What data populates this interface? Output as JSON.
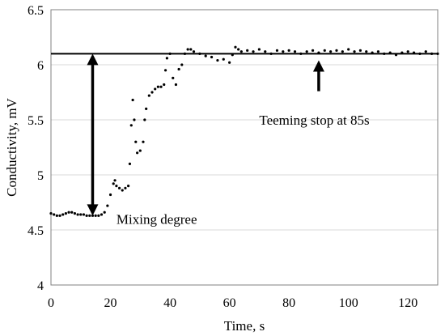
{
  "chart_data": {
    "type": "scatter",
    "title": "",
    "xlabel": "Time, s",
    "ylabel": "Conductivity, mV",
    "xlim": [
      0,
      130
    ],
    "ylim": [
      4,
      6.5
    ],
    "xticks": [
      "0",
      "20",
      "40",
      "60",
      "80",
      "100",
      "120"
    ],
    "yticks": [
      "4",
      "4.5",
      "5",
      "5.5",
      "6",
      "6.5"
    ],
    "grid": "horizontal",
    "legend": "none",
    "reference_line": {
      "y": 6.1
    },
    "annotations": [
      {
        "text": "Mixing degree",
        "x": 22,
        "y": 4.6
      },
      {
        "text": "Teeming stop at 85s",
        "x": 70,
        "y": 5.5
      }
    ],
    "arrows": [
      {
        "type": "double",
        "x": 14,
        "y_from": 4.63,
        "y_to": 6.1
      },
      {
        "type": "up",
        "x": 90,
        "y_from": 5.76,
        "y_to": 6.04
      }
    ],
    "series": [
      {
        "values": [
          [
            0,
            4.65
          ],
          [
            1,
            4.64
          ],
          [
            2,
            4.63
          ],
          [
            3,
            4.63
          ],
          [
            4,
            4.64
          ],
          [
            5,
            4.65
          ],
          [
            6,
            4.66
          ],
          [
            7,
            4.66
          ],
          [
            8,
            4.65
          ],
          [
            9,
            4.64
          ],
          [
            10,
            4.64
          ],
          [
            11,
            4.64
          ],
          [
            12,
            4.63
          ],
          [
            13,
            4.63
          ],
          [
            14,
            4.63
          ],
          [
            15,
            4.63
          ],
          [
            16,
            4.63
          ],
          [
            17,
            4.64
          ],
          [
            18,
            4.66
          ],
          [
            19,
            4.72
          ],
          [
            20,
            4.82
          ],
          [
            21,
            4.92
          ],
          [
            21.5,
            4.95
          ],
          [
            22,
            4.9
          ],
          [
            23,
            4.88
          ],
          [
            24,
            4.86
          ],
          [
            25,
            4.88
          ],
          [
            26,
            4.9
          ],
          [
            26.5,
            5.1
          ],
          [
            27,
            5.45
          ],
          [
            27.5,
            5.68
          ],
          [
            28,
            5.5
          ],
          [
            28.5,
            5.3
          ],
          [
            29,
            5.2
          ],
          [
            30,
            5.22
          ],
          [
            31,
            5.3
          ],
          [
            31.5,
            5.5
          ],
          [
            32,
            5.6
          ],
          [
            33,
            5.72
          ],
          [
            34,
            5.75
          ],
          [
            35,
            5.78
          ],
          [
            36,
            5.8
          ],
          [
            37,
            5.8
          ],
          [
            38,
            5.82
          ],
          [
            38.5,
            5.95
          ],
          [
            39,
            6.06
          ],
          [
            40,
            6.1
          ],
          [
            41,
            5.88
          ],
          [
            42,
            5.82
          ],
          [
            43,
            5.96
          ],
          [
            44,
            6.0
          ],
          [
            45,
            6.1
          ],
          [
            46,
            6.14
          ],
          [
            47,
            6.14
          ],
          [
            48,
            6.12
          ],
          [
            50,
            6.1
          ],
          [
            52,
            6.08
          ],
          [
            54,
            6.07
          ],
          [
            56,
            6.04
          ],
          [
            58,
            6.05
          ],
          [
            60,
            6.02
          ],
          [
            61,
            6.09
          ],
          [
            62,
            6.16
          ],
          [
            63,
            6.14
          ],
          [
            64,
            6.12
          ],
          [
            66,
            6.13
          ],
          [
            68,
            6.12
          ],
          [
            70,
            6.14
          ],
          [
            72,
            6.12
          ],
          [
            74,
            6.1
          ],
          [
            76,
            6.13
          ],
          [
            78,
            6.12
          ],
          [
            80,
            6.13
          ],
          [
            82,
            6.12
          ],
          [
            84,
            6.1
          ],
          [
            86,
            6.12
          ],
          [
            88,
            6.13
          ],
          [
            90,
            6.11
          ],
          [
            92,
            6.13
          ],
          [
            94,
            6.12
          ],
          [
            96,
            6.13
          ],
          [
            98,
            6.12
          ],
          [
            100,
            6.14
          ],
          [
            102,
            6.12
          ],
          [
            104,
            6.13
          ],
          [
            106,
            6.12
          ],
          [
            108,
            6.11
          ],
          [
            110,
            6.12
          ],
          [
            112,
            6.1
          ],
          [
            114,
            6.11
          ],
          [
            116,
            6.09
          ],
          [
            118,
            6.11
          ],
          [
            120,
            6.12
          ],
          [
            122,
            6.11
          ],
          [
            124,
            6.1
          ],
          [
            126,
            6.12
          ],
          [
            128,
            6.1
          ],
          [
            130,
            6.1
          ]
        ]
      }
    ]
  }
}
